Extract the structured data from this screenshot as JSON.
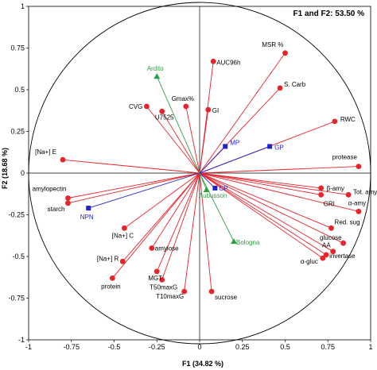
{
  "chart_data": {
    "type": "scatter",
    "title": "F1 and F2: 53.50 %",
    "xlabel": "F1 (34.82 %)",
    "ylabel": "F2 (18.68 %)",
    "xlim": [
      -1,
      1
    ],
    "ylim": [
      -1,
      1
    ],
    "xticks": [
      "-1",
      "-0.75",
      "-0.5",
      "-0.25",
      "0",
      "0.25",
      "0.5",
      "0.75",
      "1"
    ],
    "yticks": [
      "1",
      "0.75",
      "0.5",
      "0.25",
      "0",
      "-0.25",
      "-0.5",
      "-0.75",
      "-1"
    ],
    "grid": false,
    "correlation_circle": true,
    "colors": {
      "variables": "#e8232a",
      "supplementary_quantitative": "#2222cc",
      "supplementary_qualitative": "#2ea043"
    },
    "series": [
      {
        "group": "variables",
        "marker": "circle",
        "points": [
          {
            "label": "MSR %",
            "x": 0.5,
            "y": 0.72
          },
          {
            "label": "AUC96h",
            "x": 0.08,
            "y": 0.67
          },
          {
            "label": "S. Carb",
            "x": 0.47,
            "y": 0.51
          },
          {
            "label": "Gmax%",
            "x": -0.08,
            "y": 0.4
          },
          {
            "label": "CVG",
            "x": -0.31,
            "y": 0.4
          },
          {
            "label": "U7525",
            "x": -0.22,
            "y": 0.37
          },
          {
            "label": "GI",
            "x": 0.05,
            "y": 0.38
          },
          {
            "label": "RWC",
            "x": 0.79,
            "y": 0.31
          },
          {
            "label": "[Na+] E",
            "x": -0.8,
            "y": 0.08
          },
          {
            "label": "protease",
            "x": 0.93,
            "y": 0.04
          },
          {
            "label": "amylopectin",
            "x": -0.77,
            "y": -0.15
          },
          {
            "label": "starch",
            "x": -0.77,
            "y": -0.18
          },
          {
            "label": "β-amy",
            "x": 0.71,
            "y": -0.09
          },
          {
            "label": "Tot. amy",
            "x": 0.87,
            "y": -0.13
          },
          {
            "label": "GRI",
            "x": 0.71,
            "y": -0.13
          },
          {
            "label": "α-amy",
            "x": 0.93,
            "y": -0.23
          },
          {
            "label": "Red. sug",
            "x": 0.77,
            "y": -0.33
          },
          {
            "label": "glucose",
            "x": 0.84,
            "y": -0.42
          },
          {
            "label": "AA",
            "x": 0.78,
            "y": -0.47
          },
          {
            "label": "invertase",
            "x": 0.74,
            "y": -0.49
          },
          {
            "label": "α-gluc",
            "x": 0.72,
            "y": -0.51
          },
          {
            "label": "[Na+] C",
            "x": -0.44,
            "y": -0.33
          },
          {
            "label": "amylose",
            "x": -0.28,
            "y": -0.45
          },
          {
            "label": "[Na+] R",
            "x": -0.45,
            "y": -0.53
          },
          {
            "label": "protein",
            "x": -0.51,
            "y": -0.63
          },
          {
            "label": "MGT",
            "x": -0.25,
            "y": -0.59
          },
          {
            "label": "T50maxG",
            "x": -0.22,
            "y": -0.64
          },
          {
            "label": "T10maxG",
            "x": -0.09,
            "y": -0.71
          },
          {
            "label": "sucrose",
            "x": 0.07,
            "y": -0.71
          }
        ]
      },
      {
        "group": "supplementary_quantitative",
        "marker": "square",
        "points": [
          {
            "label": "MP",
            "x": 0.15,
            "y": 0.16
          },
          {
            "label": "GP",
            "x": 0.41,
            "y": 0.16
          },
          {
            "label": "NPN",
            "x": -0.65,
            "y": -0.21
          },
          {
            "label": "CP",
            "x": 0.09,
            "y": -0.09
          }
        ]
      },
      {
        "group": "supplementary_qualitative",
        "marker": "triangle",
        "points": [
          {
            "label": "Ardito",
            "x": -0.25,
            "y": 0.58
          },
          {
            "label": "Aubusson",
            "x": 0.04,
            "y": -0.1
          },
          {
            "label": "Bologna",
            "x": 0.2,
            "y": -0.41
          }
        ]
      }
    ]
  }
}
